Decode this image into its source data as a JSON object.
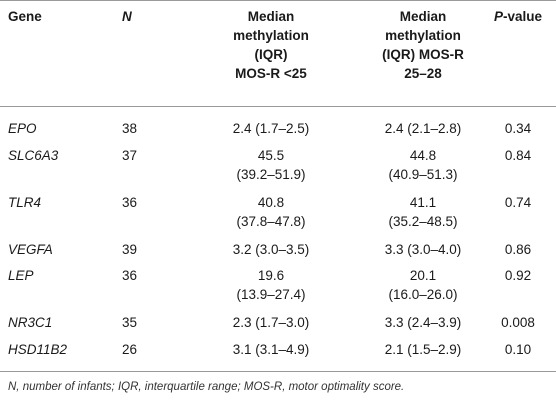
{
  "headers": {
    "gene": "Gene",
    "n": "N",
    "med1_l1": "Median",
    "med1_l2": "methylation",
    "med1_l3": "(IQR)",
    "med1_l4": "MOS-R <25",
    "med2_l1": "Median",
    "med2_l2": "methylation",
    "med2_l3": "(IQR) MOS-R",
    "med2_l4": "25–28",
    "p_prefix": "P",
    "p_suffix": "-value"
  },
  "rows": [
    {
      "gene": "EPO",
      "n": "38",
      "med1_a": "2.4 (1.7–2.5)",
      "med1_b": "",
      "med2_a": "2.4 (2.1–2.8)",
      "med2_b": "",
      "p": "0.34"
    },
    {
      "gene": "SLC6A3",
      "n": "37",
      "med1_a": "45.5",
      "med1_b": "(39.2–51.9)",
      "med2_a": "44.8",
      "med2_b": "(40.9–51.3)",
      "p": "0.84"
    },
    {
      "gene": "TLR4",
      "n": "36",
      "med1_a": "40.8",
      "med1_b": "(37.8–47.8)",
      "med2_a": "41.1",
      "med2_b": "(35.2–48.5)",
      "p": "0.74"
    },
    {
      "gene": "VEGFA",
      "n": "39",
      "med1_a": "3.2 (3.0–3.5)",
      "med1_b": "",
      "med2_a": "3.3 (3.0–4.0)",
      "med2_b": "",
      "p": "0.86"
    },
    {
      "gene": "LEP",
      "n": "36",
      "med1_a": "19.6",
      "med1_b": "(13.9–27.4)",
      "med2_a": "20.1",
      "med2_b": "(16.0–26.0)",
      "p": "0.92"
    },
    {
      "gene": "NR3C1",
      "n": "35",
      "med1_a": "2.3 (1.7–3.0)",
      "med1_b": "",
      "med2_a": "3.3 (2.4–3.9)",
      "med2_b": "",
      "p": "0.008"
    },
    {
      "gene": "HSD11B2",
      "n": "26",
      "med1_a": "3.1 (3.1–4.9)",
      "med1_b": "",
      "med2_a": "2.1 (1.5–2.9)",
      "med2_b": "",
      "p": "0.10"
    }
  ],
  "footnote": "N, number of infants; IQR, interquartile range; MOS-R, motor optimality score."
}
